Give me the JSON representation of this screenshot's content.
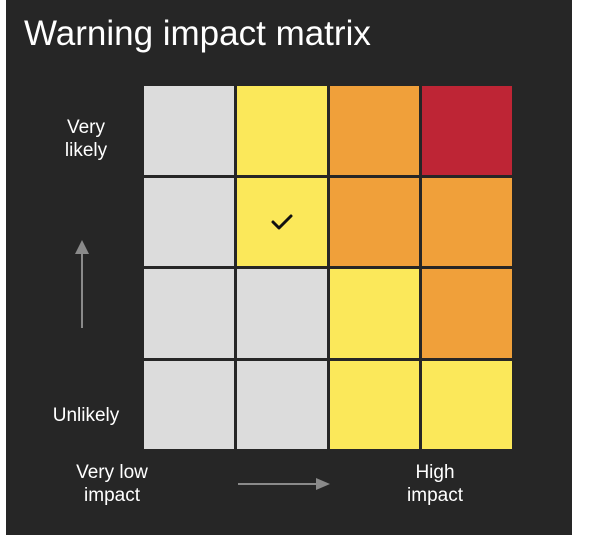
{
  "title": "Warning impact matrix",
  "likelihood_axis": {
    "top_label": "Very likely",
    "bottom_label": "Unlikely"
  },
  "impact_axis": {
    "left_label": "Very low impact",
    "right_label": "High impact"
  },
  "colors": {
    "panel": "#262626",
    "grey": "#DCDCDC",
    "yellow": "#FBE85A",
    "amber": "#F0A03A",
    "red": "#BE2535",
    "arrow": "#8A8A8A"
  },
  "matrix": {
    "rows": [
      [
        "grey",
        "yellow",
        "amber",
        "red"
      ],
      [
        "grey",
        "yellow",
        "amber",
        "amber"
      ],
      [
        "grey",
        "grey",
        "yellow",
        "amber"
      ],
      [
        "grey",
        "grey",
        "yellow",
        "yellow"
      ]
    ],
    "selected": {
      "row": 1,
      "col": 1,
      "icon": "check-icon"
    }
  }
}
